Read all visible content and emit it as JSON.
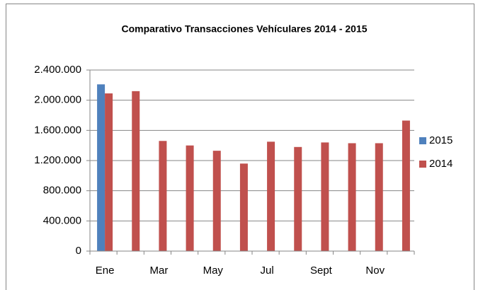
{
  "chart_data": {
    "type": "bar",
    "title": "Comparativo Transacciones Vehículares 2014 - 2015",
    "categories": [
      "Ene",
      null,
      "Mar",
      null,
      "May",
      null,
      "Jul",
      null,
      "Sept",
      null,
      "Nov",
      null
    ],
    "series": [
      {
        "name": "2015",
        "color": "#4f81bd",
        "values": [
          2210000,
          null,
          null,
          null,
          null,
          null,
          null,
          null,
          null,
          null,
          null,
          null
        ]
      },
      {
        "name": "2014",
        "color": "#c0504d",
        "values": [
          2090000,
          2120000,
          1460000,
          1400000,
          1330000,
          1160000,
          1450000,
          1380000,
          1440000,
          1430000,
          1430000,
          1730000
        ]
      }
    ],
    "ylim": [
      0,
      2400000
    ],
    "yticks": [
      0,
      {
        "value": 400000,
        "label": "400.000"
      },
      {
        "value": 800000,
        "label": "800.000"
      },
      {
        "value": 1200000,
        "label": "1.200.000"
      },
      {
        "value": 1600000,
        "label": "1.600.000"
      },
      {
        "value": 2000000,
        "label": "2.000.000"
      },
      {
        "value": 2400000,
        "label": "2.400.000"
      }
    ],
    "grid": true,
    "legend": "right"
  }
}
